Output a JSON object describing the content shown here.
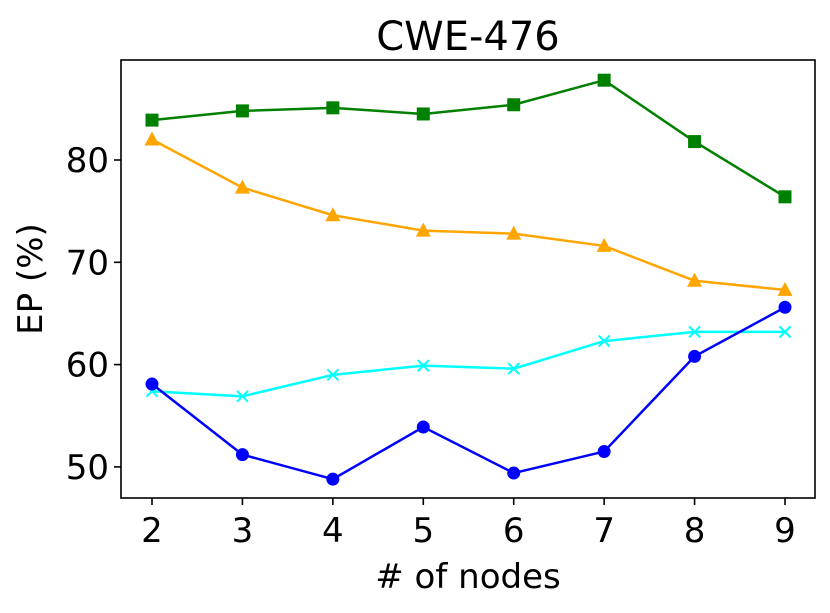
{
  "chart_data": {
    "type": "line",
    "title": "CWE-476",
    "xlabel": "# of nodes",
    "ylabel": "EP (%)",
    "x": [
      2,
      3,
      4,
      5,
      6,
      7,
      8,
      9
    ],
    "xlim": [
      1.66,
      9.33
    ],
    "ylim": [
      47,
      90
    ],
    "yticks": [
      50,
      60,
      70,
      80
    ],
    "xticks": [
      2,
      3,
      4,
      5,
      6,
      7,
      8,
      9
    ],
    "grid": false,
    "legend": null,
    "series": [
      {
        "name": "green-square",
        "color": "#008000",
        "marker": "square",
        "values": [
          83.9,
          84.8,
          85.1,
          84.5,
          85.4,
          87.8,
          81.8,
          76.4
        ]
      },
      {
        "name": "orange-triangle",
        "color": "#FFA500",
        "marker": "triangle",
        "values": [
          82.0,
          77.3,
          74.6,
          73.1,
          72.8,
          71.6,
          68.2,
          67.3
        ]
      },
      {
        "name": "cyan-x",
        "color": "#00FFFF",
        "marker": "x",
        "values": [
          57.4,
          56.9,
          59.0,
          59.9,
          59.6,
          62.3,
          63.2,
          63.2
        ]
      },
      {
        "name": "blue-circle",
        "color": "#0000FF",
        "marker": "circle",
        "values": [
          58.1,
          51.2,
          48.8,
          53.9,
          49.4,
          51.5,
          60.8,
          65.6
        ]
      }
    ]
  }
}
